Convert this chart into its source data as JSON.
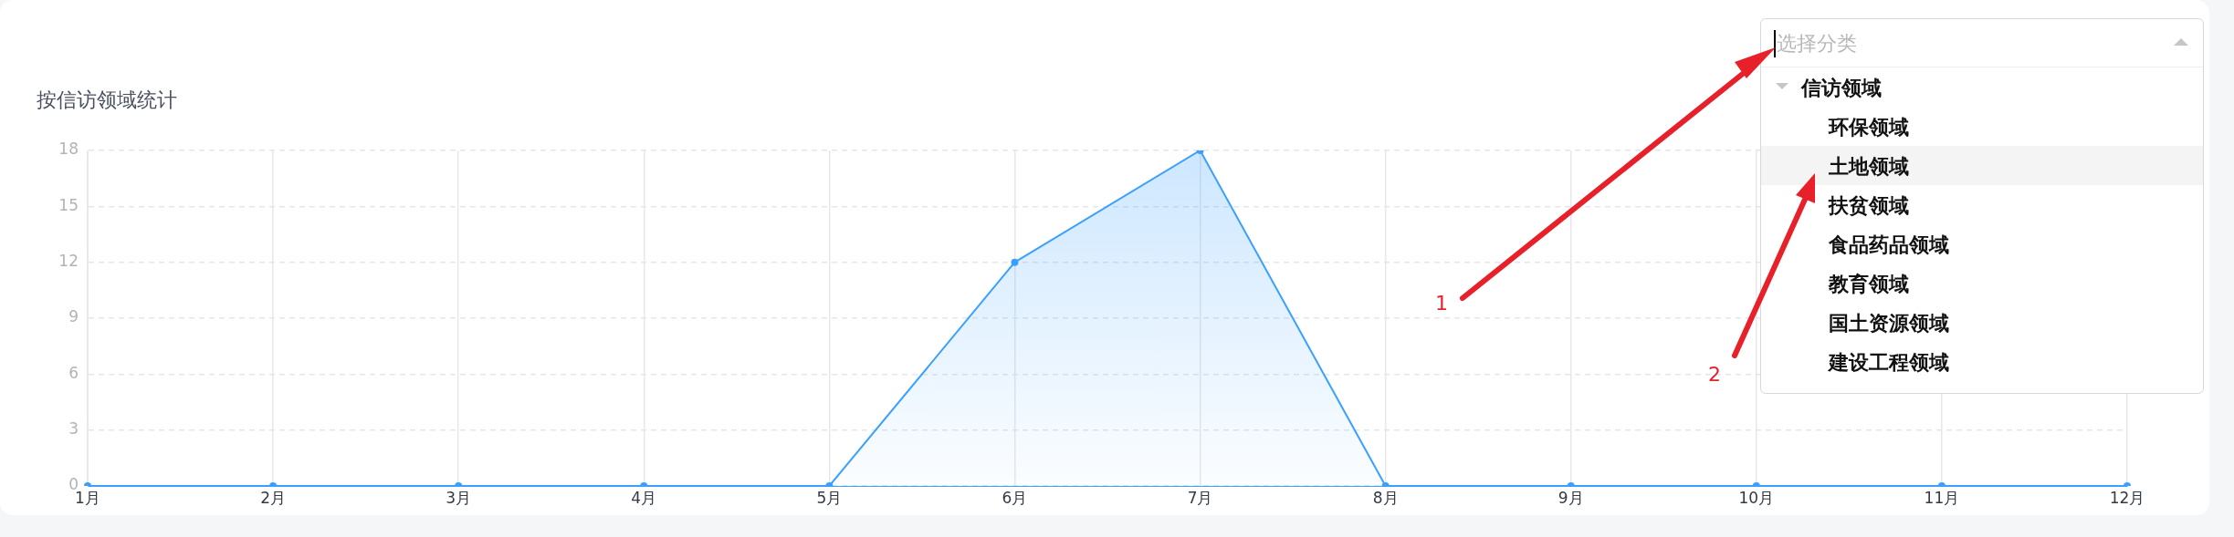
{
  "chart_data": {
    "type": "area",
    "title": "按信访领域统计",
    "categories": [
      "1月",
      "2月",
      "3月",
      "4月",
      "5月",
      "6月",
      "7月",
      "8月",
      "9月",
      "10月",
      "11月",
      "12月"
    ],
    "series": [
      {
        "color": "#3aa0ff",
        "values": [
          0,
          0,
          0,
          0,
          0,
          12,
          18,
          0,
          0,
          0,
          0,
          0
        ]
      }
    ],
    "ylim": [
      0,
      18
    ],
    "yticks": [
      0,
      3,
      6,
      9,
      12,
      15,
      18
    ],
    "grid": true,
    "legend": false,
    "marker": "circle",
    "line_style": "solid",
    "annotations": [
      "选择分类",
      "信访领域",
      "环保领域",
      "土地领域",
      "扶贫领域",
      "食品药品领域",
      "教育领域",
      "国土资源领域",
      "建设工程领域",
      "1",
      "2"
    ]
  }
}
